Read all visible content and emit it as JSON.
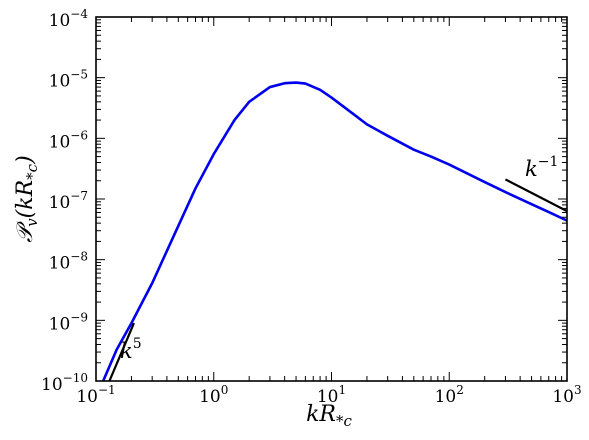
{
  "chart_data": {
    "type": "line",
    "xscale": "log",
    "yscale": "log",
    "xlim": [
      0.1,
      1000
    ],
    "ylim": [
      1e-10,
      0.0001
    ],
    "xlabel": {
      "main": "kR",
      "sub": "*c"
    },
    "ylabel": {
      "main": "𝒫",
      "sub": "v",
      "args": "(kR",
      "argsub": "*c",
      "close": ")"
    },
    "x_ticks": [
      {
        "base": "10",
        "exp": "−1",
        "value": 0.1
      },
      {
        "base": "10",
        "exp": "0",
        "value": 1
      },
      {
        "base": "10",
        "exp": "1",
        "value": 10
      },
      {
        "base": "10",
        "exp": "2",
        "value": 100
      },
      {
        "base": "10",
        "exp": "3",
        "value": 1000
      }
    ],
    "y_ticks": [
      {
        "base": "10",
        "exp": "−10",
        "value": 1e-10
      },
      {
        "base": "10",
        "exp": "−9",
        "value": 1e-09
      },
      {
        "base": "10",
        "exp": "−8",
        "value": 1e-08
      },
      {
        "base": "10",
        "exp": "−7",
        "value": 1e-07
      },
      {
        "base": "10",
        "exp": "−6",
        "value": 1e-06
      },
      {
        "base": "10",
        "exp": "−5",
        "value": 1e-05
      },
      {
        "base": "10",
        "exp": "−4",
        "value": 0.0001
      }
    ],
    "grid": false,
    "series": [
      {
        "color": "#0000ee",
        "x": [
          0.115,
          0.15,
          0.2,
          0.3,
          0.5,
          0.7,
          1.0,
          1.5,
          2.0,
          3.0,
          4.0,
          5.0,
          6.0,
          8.0,
          10,
          15,
          20,
          30,
          50,
          70,
          100,
          200,
          300,
          500,
          700,
          1000
        ],
        "y": [
          1e-10,
          3.3e-10,
          9e-10,
          4.1e-09,
          3.6e-08,
          1.5e-07,
          5.5e-07,
          2e-06,
          4e-06,
          7e-06,
          8.1e-06,
          8.3e-06,
          8e-06,
          6.3e-06,
          4.7e-06,
          2.6e-06,
          1.7e-06,
          1.1e-06,
          6.5e-07,
          5e-07,
          3.7e-07,
          1.9e-07,
          1.3e-07,
          8.2e-08,
          6.1e-08,
          4.4e-08
        ]
      }
    ],
    "guides": [
      {
        "label": "k",
        "exp": "5",
        "color": "#000000",
        "x": [
          0.13,
          0.21
        ],
        "y": [
          1e-10,
          9e-10
        ],
        "label_at": [
          0.16,
          2.4e-10
        ]
      },
      {
        "label": "k",
        "exp": "−1",
        "color": "#000000",
        "x": [
          300,
          1000
        ],
        "y": [
          2.1e-07,
          6.3e-08
        ],
        "label_at": [
          440,
          2.4e-07
        ]
      }
    ]
  }
}
